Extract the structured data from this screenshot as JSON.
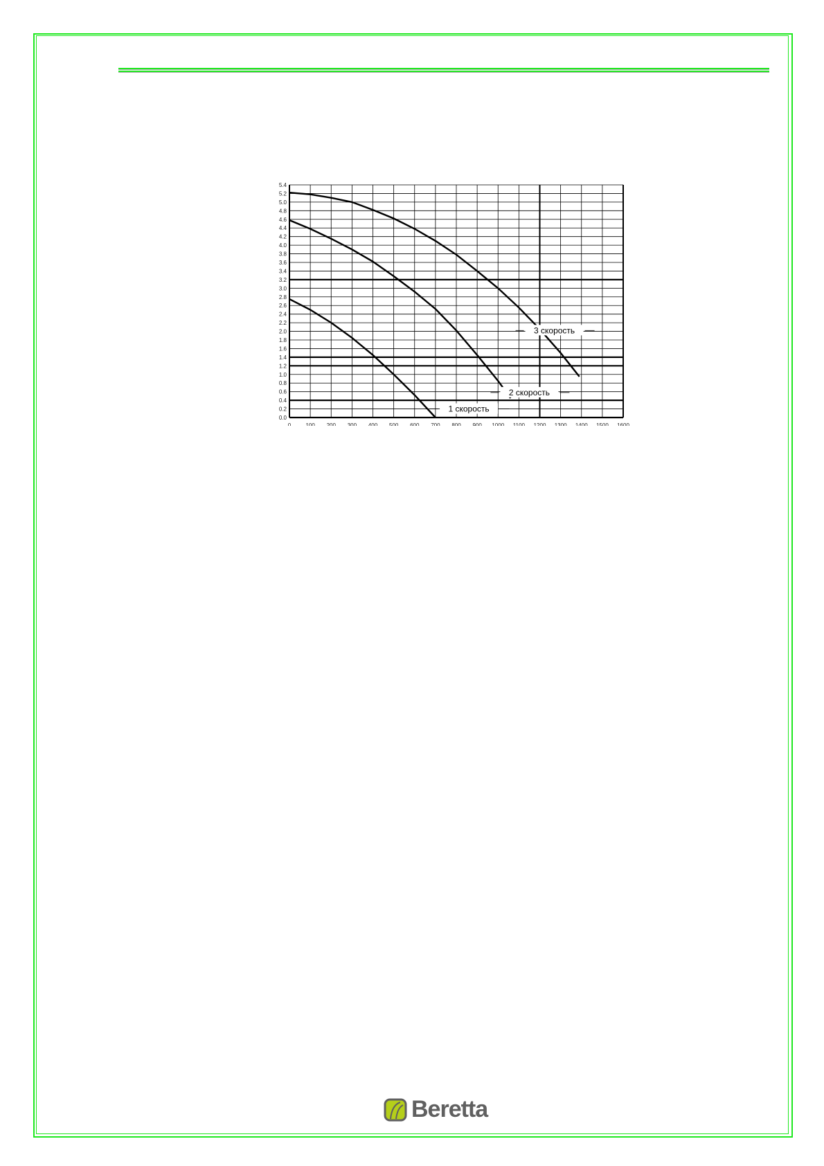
{
  "colors": {
    "frame": "#1ee81e",
    "logo_green": "#b5cf1a",
    "logo_gray": "#606060"
  },
  "logo": {
    "text": "Beretta",
    "icon": "beretta-leaf-icon"
  },
  "chart_data": {
    "type": "line",
    "title": "",
    "xlabel": "",
    "ylabel": "",
    "xlim": [
      0,
      1600
    ],
    "ylim": [
      0,
      5.4
    ],
    "grid": true,
    "x_ticks": [
      "0",
      "100",
      "200",
      "300",
      "400",
      "500",
      "600",
      "700",
      "800",
      "900",
      "1000",
      "1100",
      "1200",
      "1300",
      "1400",
      "1500",
      "1600"
    ],
    "y_ticks": [
      "0.0",
      "0.2",
      "0.4",
      "0.6",
      "0.8",
      "1.0",
      "1.2",
      "1.4",
      "1.6",
      "1.8",
      "2.0",
      "2.2",
      "2.4",
      "2.6",
      "2.8",
      "3.0",
      "3.2",
      "3.4",
      "3.6",
      "3.8",
      "4.0",
      "4.2",
      "4.4",
      "4.6",
      "4.8",
      "5.0",
      "5.2",
      "5.4"
    ],
    "series": [
      {
        "name": "1 скорость",
        "x": [
          0,
          100,
          200,
          300,
          400,
          500,
          600,
          700
        ],
        "y": [
          2.75,
          2.5,
          2.2,
          1.85,
          1.45,
          1.0,
          0.52,
          0.0
        ]
      },
      {
        "name": "2 скорость",
        "x": [
          0,
          100,
          200,
          300,
          400,
          500,
          600,
          700,
          800,
          900,
          1000,
          1060
        ],
        "y": [
          4.58,
          4.38,
          4.15,
          3.9,
          3.62,
          3.28,
          2.92,
          2.52,
          2.02,
          1.45,
          0.85,
          0.45
        ]
      },
      {
        "name": "3 скорость",
        "x": [
          0,
          100,
          200,
          300,
          400,
          500,
          600,
          700,
          800,
          900,
          1000,
          1100,
          1200,
          1300,
          1390
        ],
        "y": [
          5.22,
          5.18,
          5.1,
          5.0,
          4.82,
          4.62,
          4.38,
          4.1,
          3.78,
          3.4,
          3.0,
          2.55,
          2.05,
          1.5,
          0.95
        ]
      }
    ]
  }
}
